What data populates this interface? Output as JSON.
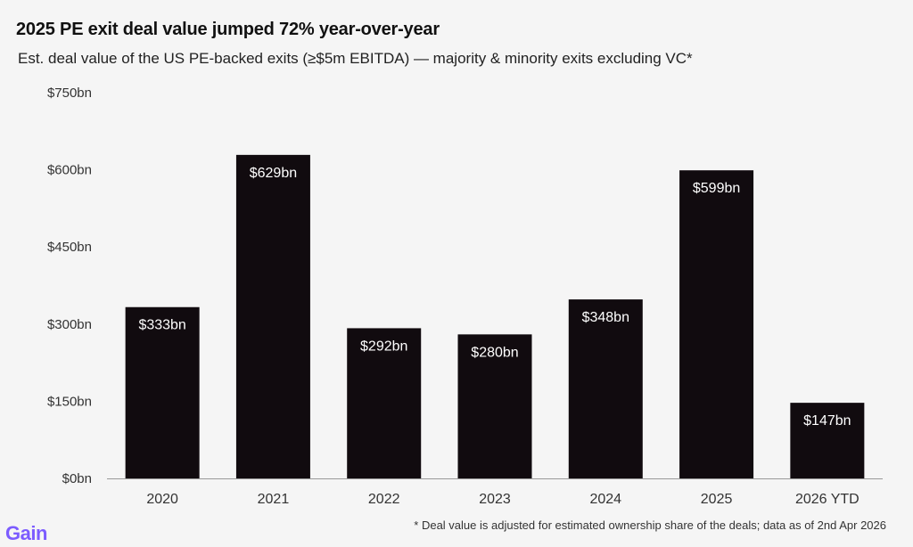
{
  "title": "2025 PE exit deal value jumped 72% year-over-year",
  "subtitle": "Est. deal value of the US PE-backed exits (≥$5m EBITDA) — majority & minority exits excluding VC*",
  "footnote": "* Deal value is adjusted for estimated ownership share of the deals; data as of 2nd Apr 2026",
  "logo": "Gain",
  "chart_data": {
    "type": "bar",
    "categories": [
      "2020",
      "2021",
      "2022",
      "2023",
      "2024",
      "2025",
      "2026 YTD"
    ],
    "values": [
      333,
      629,
      292,
      280,
      348,
      599,
      147
    ],
    "data_labels": [
      "$333bn",
      "$629bn",
      "$292bn",
      "$280bn",
      "$348bn",
      "$599bn",
      "$147bn"
    ],
    "yticks": [
      0,
      150,
      300,
      450,
      600,
      750
    ],
    "ytick_labels": [
      "$0bn",
      "$150bn",
      "$300bn",
      "$450bn",
      "$600bn",
      "$750bn"
    ],
    "ylim": [
      0,
      750
    ],
    "grid": false,
    "bar_color": "#110b0f"
  }
}
